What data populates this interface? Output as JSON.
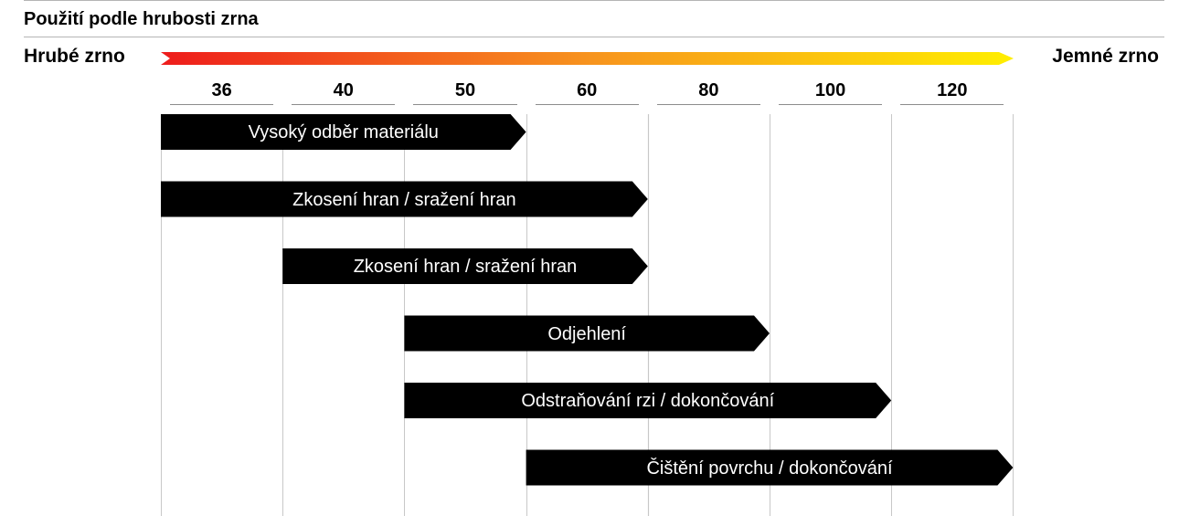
{
  "title": "Použití podle hrubosti zrna",
  "scale": {
    "left_label": "Hrubé zrno",
    "right_label": "Jemné zrno",
    "gradient_colors": [
      "#ee1c1c",
      "#f7931e",
      "#ffee00"
    ]
  },
  "grits": [
    "36",
    "40",
    "50",
    "60",
    "80",
    "100",
    "120"
  ],
  "applications": [
    {
      "label": "Vysoký odběr materiálu",
      "from_grit": "36",
      "to_grit": "50"
    },
    {
      "label": "Zkosení hran / sražení hran",
      "from_grit": "36",
      "to_grit": "60"
    },
    {
      "label": "Zkosení hran / sražení hran",
      "from_grit": "40",
      "to_grit": "60"
    },
    {
      "label": "Odjehlení",
      "from_grit": "50",
      "to_grit": "80"
    },
    {
      "label": "Odstraňování rzi / dokončování",
      "from_grit": "50",
      "to_grit": "100"
    },
    {
      "label": "Čištění povrchu / dokončování",
      "from_grit": "60",
      "to_grit": "120"
    }
  ],
  "colors": {
    "bar": "#000000",
    "bar_text": "#ffffff",
    "gridline": "#c8c8c8"
  }
}
